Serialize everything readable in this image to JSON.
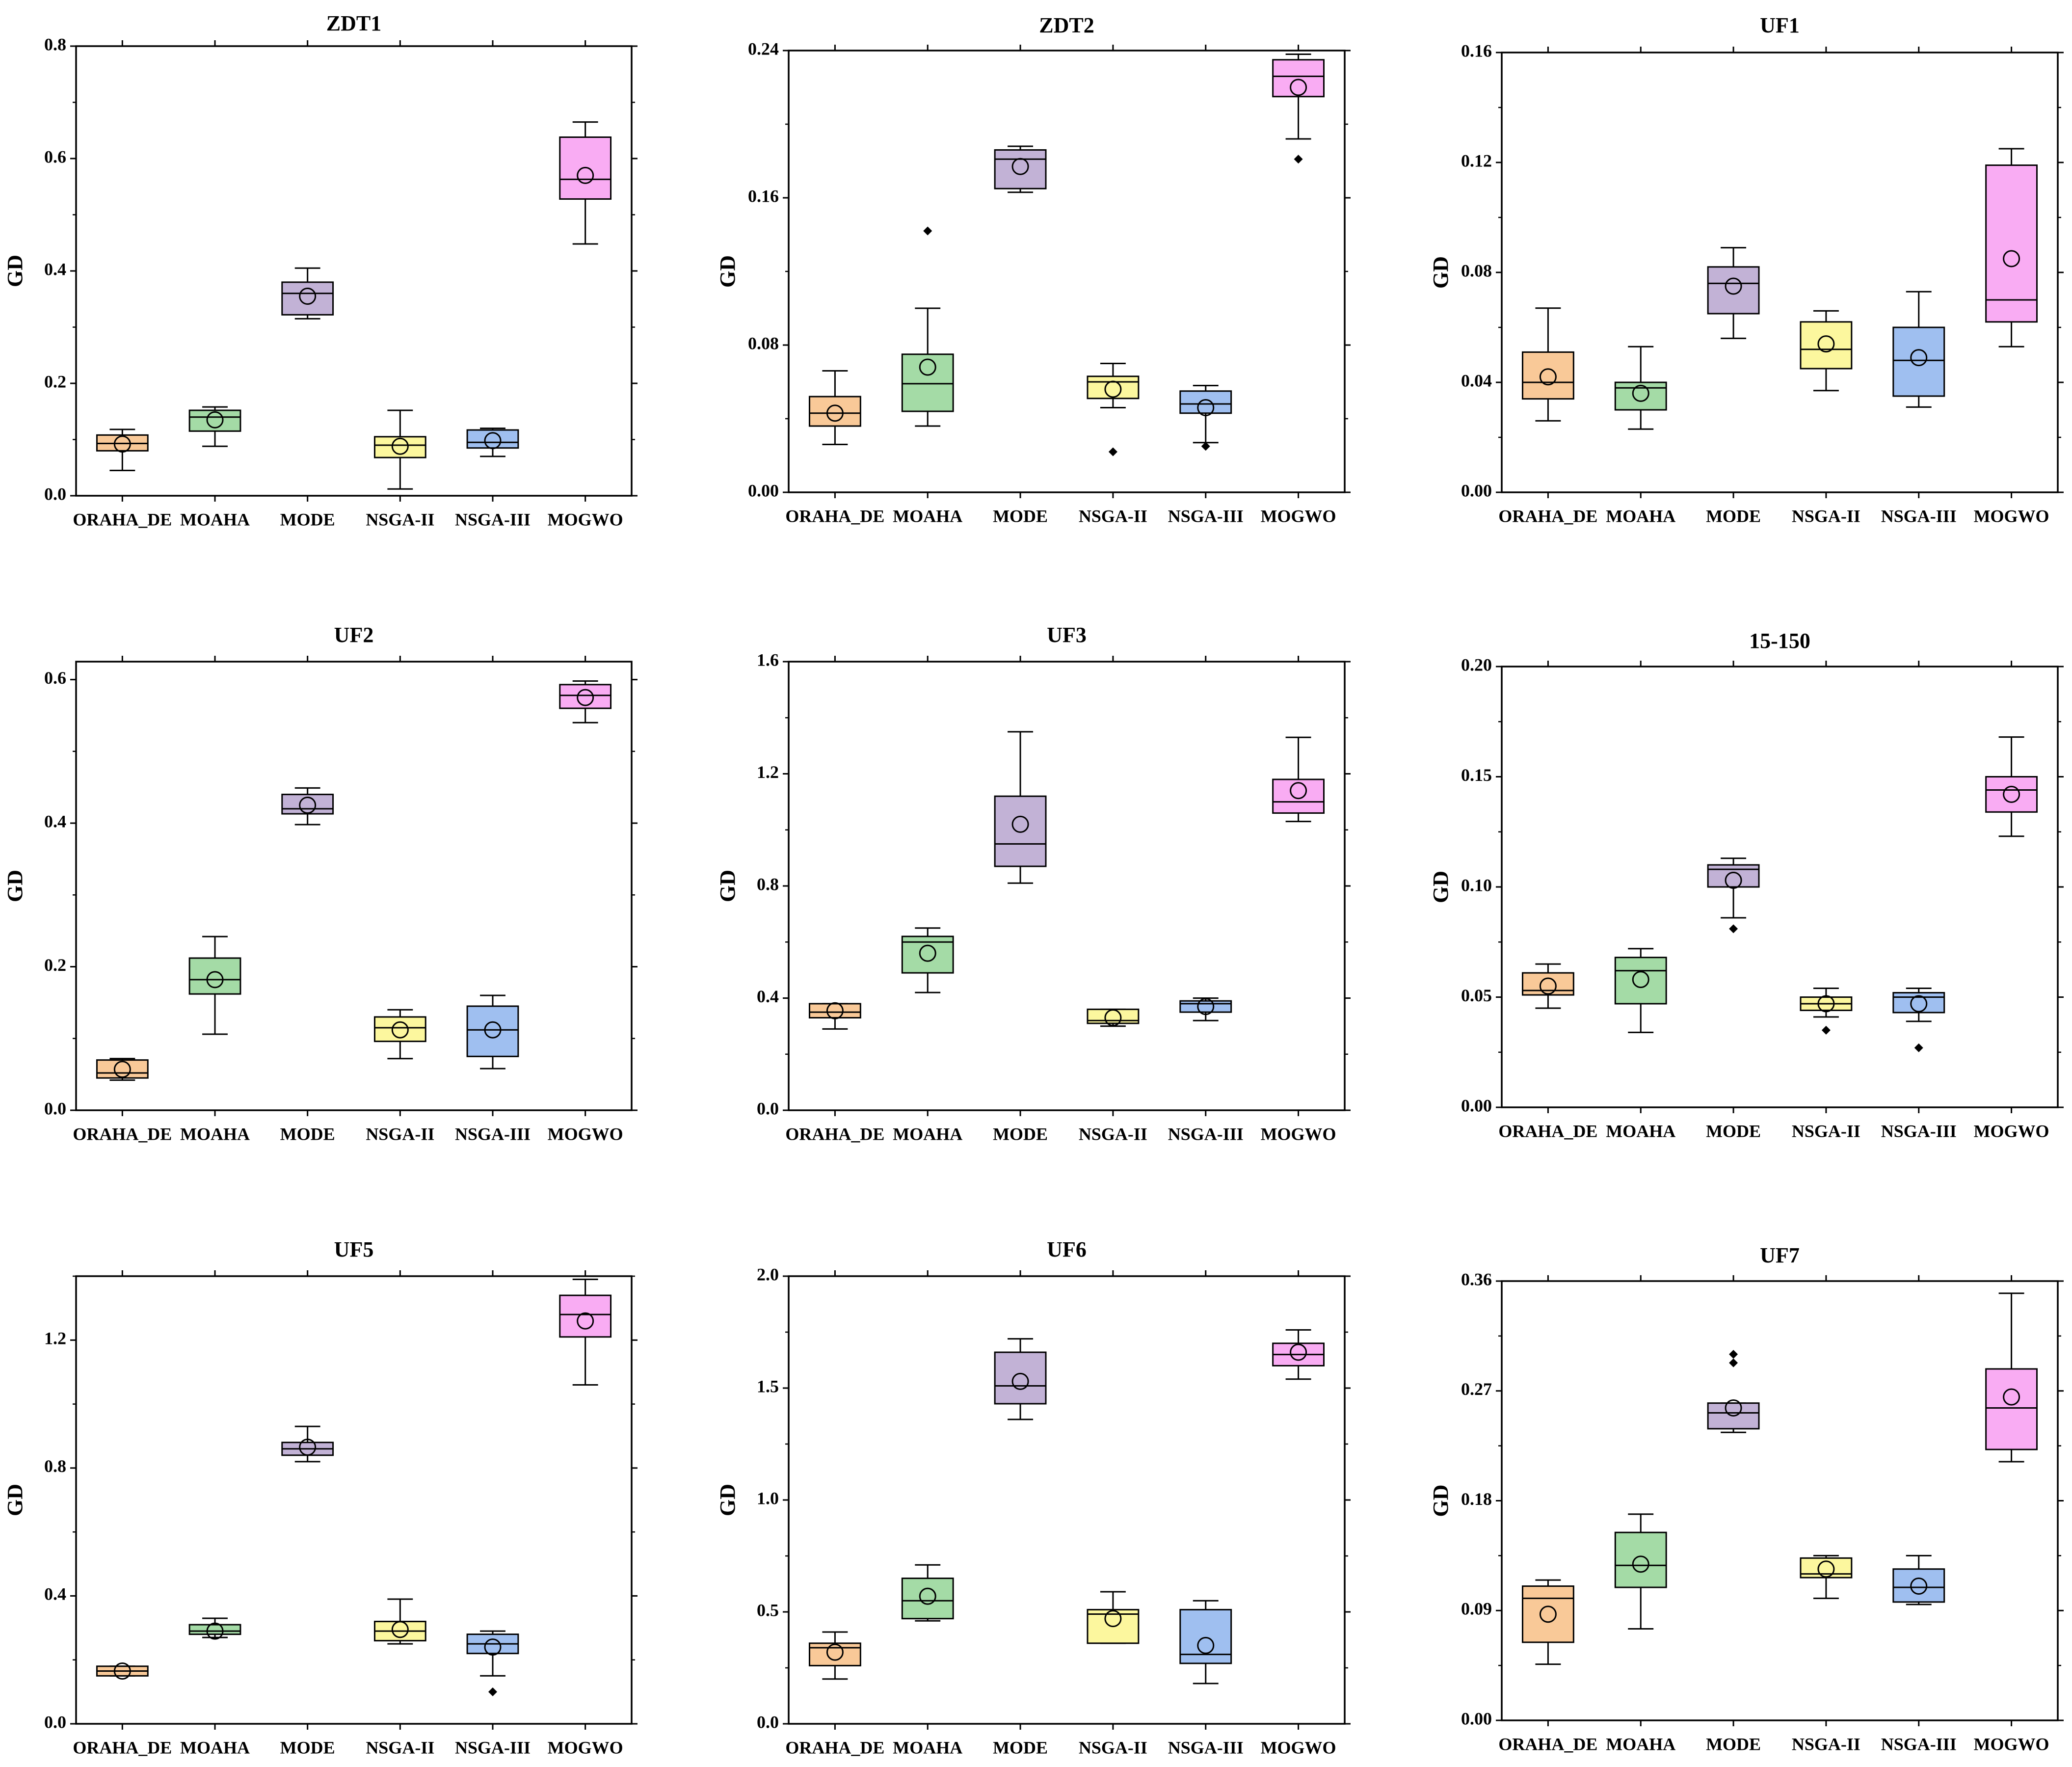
{
  "categories": [
    "ORAHA_DE",
    "MOAHA",
    "MODE",
    "NSGA-II",
    "NSGA-III",
    "MOGWO"
  ],
  "colors": [
    "#F9C998",
    "#A4DBA6",
    "#C2B2D6",
    "#FCF79E",
    "#9FBFF0",
    "#F9ACF3"
  ],
  "chart_data": [
    {
      "type": "box",
      "title": "ZDT1",
      "ylabel": "GD",
      "ylim": [
        0,
        0.8
      ],
      "yticks": [
        0,
        0.2,
        0.4,
        0.6,
        0.8
      ],
      "tick_labels": [
        "0.0",
        "0.2",
        "0.4",
        "0.6",
        "0.8"
      ],
      "boxes": [
        {
          "min": 0.045,
          "q1": 0.08,
          "median": 0.093,
          "q3": 0.108,
          "max": 0.118,
          "mean": 0.092,
          "outliers": []
        },
        {
          "min": 0.088,
          "q1": 0.115,
          "median": 0.14,
          "q3": 0.152,
          "max": 0.158,
          "mean": 0.135,
          "outliers": []
        },
        {
          "min": 0.315,
          "q1": 0.322,
          "median": 0.36,
          "q3": 0.38,
          "max": 0.405,
          "mean": 0.355,
          "outliers": []
        },
        {
          "min": 0.012,
          "q1": 0.068,
          "median": 0.09,
          "q3": 0.105,
          "max": 0.152,
          "mean": 0.088,
          "outliers": []
        },
        {
          "min": 0.07,
          "q1": 0.085,
          "median": 0.095,
          "q3": 0.117,
          "max": 0.12,
          "mean": 0.098,
          "outliers": []
        },
        {
          "min": 0.448,
          "q1": 0.528,
          "median": 0.563,
          "q3": 0.638,
          "max": 0.665,
          "mean": 0.57,
          "outliers": []
        }
      ]
    },
    {
      "type": "box",
      "title": "ZDT2",
      "ylabel": "GD",
      "ylim": [
        0,
        0.24
      ],
      "yticks": [
        0,
        0.08,
        0.16,
        0.24
      ],
      "tick_labels": [
        "0.00",
        "0.08",
        "0.16",
        "0.24"
      ],
      "boxes": [
        {
          "min": 0.026,
          "q1": 0.036,
          "median": 0.043,
          "q3": 0.052,
          "max": 0.066,
          "mean": 0.043,
          "outliers": []
        },
        {
          "min": 0.036,
          "q1": 0.044,
          "median": 0.059,
          "q3": 0.075,
          "max": 0.1,
          "mean": 0.068,
          "outliers": [
            0.142
          ]
        },
        {
          "min": 0.163,
          "q1": 0.165,
          "median": 0.181,
          "q3": 0.186,
          "max": 0.188,
          "mean": 0.177,
          "outliers": []
        },
        {
          "min": 0.046,
          "q1": 0.051,
          "median": 0.06,
          "q3": 0.063,
          "max": 0.07,
          "mean": 0.056,
          "outliers": [
            0.022
          ]
        },
        {
          "min": 0.027,
          "q1": 0.043,
          "median": 0.048,
          "q3": 0.055,
          "max": 0.058,
          "mean": 0.046,
          "outliers": [
            0.025
          ]
        },
        {
          "min": 0.192,
          "q1": 0.215,
          "median": 0.226,
          "q3": 0.235,
          "max": 0.238,
          "mean": 0.22,
          "outliers": [
            0.181
          ]
        }
      ]
    },
    {
      "type": "box",
      "title": "UF1",
      "ylabel": "GD",
      "ylim": [
        0,
        0.16
      ],
      "yticks": [
        0,
        0.04,
        0.08,
        0.12,
        0.16
      ],
      "tick_labels": [
        "0.00",
        "0.04",
        "0.08",
        "0.12",
        "0.16"
      ],
      "boxes": [
        {
          "min": 0.026,
          "q1": 0.034,
          "median": 0.04,
          "q3": 0.051,
          "max": 0.067,
          "mean": 0.042,
          "outliers": []
        },
        {
          "min": 0.023,
          "q1": 0.03,
          "median": 0.038,
          "q3": 0.04,
          "max": 0.053,
          "mean": 0.036,
          "outliers": []
        },
        {
          "min": 0.056,
          "q1": 0.065,
          "median": 0.076,
          "q3": 0.082,
          "max": 0.089,
          "mean": 0.075,
          "outliers": []
        },
        {
          "min": 0.037,
          "q1": 0.045,
          "median": 0.052,
          "q3": 0.062,
          "max": 0.066,
          "mean": 0.054,
          "outliers": []
        },
        {
          "min": 0.031,
          "q1": 0.035,
          "median": 0.048,
          "q3": 0.06,
          "max": 0.073,
          "mean": 0.049,
          "outliers": []
        },
        {
          "min": 0.053,
          "q1": 0.062,
          "median": 0.07,
          "q3": 0.119,
          "max": 0.125,
          "mean": 0.085,
          "outliers": []
        }
      ]
    },
    {
      "type": "box",
      "title": "UF2",
      "ylabel": "GD",
      "ylim": [
        0,
        0.625
      ],
      "yticks": [
        0,
        0.2,
        0.4,
        0.6
      ],
      "tick_labels": [
        "0.0",
        "0.2",
        "0.4",
        "0.6"
      ],
      "boxes": [
        {
          "min": 0.042,
          "q1": 0.045,
          "median": 0.052,
          "q3": 0.07,
          "max": 0.072,
          "mean": 0.057,
          "outliers": []
        },
        {
          "min": 0.106,
          "q1": 0.162,
          "median": 0.182,
          "q3": 0.212,
          "max": 0.242,
          "mean": 0.182,
          "outliers": []
        },
        {
          "min": 0.398,
          "q1": 0.413,
          "median": 0.42,
          "q3": 0.44,
          "max": 0.449,
          "mean": 0.425,
          "outliers": []
        },
        {
          "min": 0.072,
          "q1": 0.096,
          "median": 0.115,
          "q3": 0.13,
          "max": 0.14,
          "mean": 0.112,
          "outliers": []
        },
        {
          "min": 0.058,
          "q1": 0.075,
          "median": 0.112,
          "q3": 0.145,
          "max": 0.16,
          "mean": 0.112,
          "outliers": []
        },
        {
          "min": 0.54,
          "q1": 0.56,
          "median": 0.578,
          "q3": 0.593,
          "max": 0.598,
          "mean": 0.575,
          "outliers": []
        }
      ]
    },
    {
      "type": "box",
      "title": "UF3",
      "ylabel": "GD",
      "ylim": [
        0,
        1.6
      ],
      "yticks": [
        0,
        0.4,
        0.8,
        1.2,
        1.6
      ],
      "tick_labels": [
        "0.0",
        "0.4",
        "0.8",
        "1.2",
        "1.6"
      ],
      "boxes": [
        {
          "min": 0.29,
          "q1": 0.33,
          "median": 0.35,
          "q3": 0.38,
          "max": 0.38,
          "mean": 0.355,
          "outliers": []
        },
        {
          "min": 0.42,
          "q1": 0.49,
          "median": 0.6,
          "q3": 0.62,
          "max": 0.65,
          "mean": 0.56,
          "outliers": []
        },
        {
          "min": 0.81,
          "q1": 0.87,
          "median": 0.95,
          "q3": 1.12,
          "max": 1.35,
          "mean": 1.02,
          "outliers": []
        },
        {
          "min": 0.3,
          "q1": 0.31,
          "median": 0.32,
          "q3": 0.36,
          "max": 0.36,
          "mean": 0.33,
          "outliers": []
        },
        {
          "min": 0.32,
          "q1": 0.35,
          "median": 0.38,
          "q3": 0.39,
          "max": 0.4,
          "mean": 0.37,
          "outliers": []
        },
        {
          "min": 1.03,
          "q1": 1.06,
          "median": 1.1,
          "q3": 1.18,
          "max": 1.33,
          "mean": 1.14,
          "outliers": []
        }
      ]
    },
    {
      "type": "box",
      "title": "15-150",
      "ylabel": "GD",
      "ylim": [
        0,
        0.2
      ],
      "yticks": [
        0,
        0.05,
        0.1,
        0.15,
        0.2
      ],
      "tick_labels": [
        "0.00",
        "0.05",
        "0.10",
        "0.15",
        "0.20"
      ],
      "boxes": [
        {
          "min": 0.045,
          "q1": 0.051,
          "median": 0.053,
          "q3": 0.061,
          "max": 0.065,
          "mean": 0.055,
          "outliers": []
        },
        {
          "min": 0.034,
          "q1": 0.047,
          "median": 0.062,
          "q3": 0.068,
          "max": 0.072,
          "mean": 0.058,
          "outliers": []
        },
        {
          "min": 0.086,
          "q1": 0.1,
          "median": 0.108,
          "q3": 0.11,
          "max": 0.113,
          "mean": 0.103,
          "outliers": [
            0.081
          ]
        },
        {
          "min": 0.041,
          "q1": 0.044,
          "median": 0.047,
          "q3": 0.05,
          "max": 0.054,
          "mean": 0.047,
          "outliers": [
            0.035
          ]
        },
        {
          "min": 0.039,
          "q1": 0.043,
          "median": 0.05,
          "q3": 0.052,
          "max": 0.054,
          "mean": 0.047,
          "outliers": [
            0.027
          ]
        },
        {
          "min": 0.123,
          "q1": 0.134,
          "median": 0.144,
          "q3": 0.15,
          "max": 0.168,
          "mean": 0.142,
          "outliers": []
        }
      ]
    },
    {
      "type": "box",
      "title": "UF5",
      "ylabel": "GD",
      "ylim": [
        0,
        1.4
      ],
      "yticks": [
        0,
        0.4,
        0.8,
        1.2
      ],
      "tick_labels": [
        "0.0",
        "0.4",
        "0.8",
        "1.2"
      ],
      "boxes": [
        {
          "min": 0.15,
          "q1": 0.15,
          "median": 0.165,
          "q3": 0.18,
          "max": 0.18,
          "mean": 0.165,
          "outliers": []
        },
        {
          "min": 0.27,
          "q1": 0.28,
          "median": 0.29,
          "q3": 0.31,
          "max": 0.33,
          "mean": 0.29,
          "outliers": []
        },
        {
          "min": 0.82,
          "q1": 0.84,
          "median": 0.86,
          "q3": 0.88,
          "max": 0.93,
          "mean": 0.865,
          "outliers": []
        },
        {
          "min": 0.25,
          "q1": 0.26,
          "median": 0.29,
          "q3": 0.32,
          "max": 0.39,
          "mean": 0.295,
          "outliers": []
        },
        {
          "min": 0.15,
          "q1": 0.22,
          "median": 0.25,
          "q3": 0.28,
          "max": 0.29,
          "mean": 0.24,
          "outliers": [
            0.1
          ]
        },
        {
          "min": 1.06,
          "q1": 1.21,
          "median": 1.28,
          "q3": 1.34,
          "max": 1.39,
          "mean": 1.26,
          "outliers": []
        }
      ]
    },
    {
      "type": "box",
      "title": "UF6",
      "ylabel": "GD",
      "ylim": [
        0,
        2.0
      ],
      "yticks": [
        0,
        0.5,
        1.0,
        1.5,
        2.0
      ],
      "tick_labels": [
        "0.0",
        "0.5",
        "1.0",
        "1.5",
        "2.0"
      ],
      "boxes": [
        {
          "min": 0.2,
          "q1": 0.26,
          "median": 0.34,
          "q3": 0.36,
          "max": 0.41,
          "mean": 0.32,
          "outliers": []
        },
        {
          "min": 0.46,
          "q1": 0.47,
          "median": 0.55,
          "q3": 0.65,
          "max": 0.71,
          "mean": 0.57,
          "outliers": []
        },
        {
          "min": 1.36,
          "q1": 1.43,
          "median": 1.51,
          "q3": 1.66,
          "max": 1.72,
          "mean": 1.53,
          "outliers": []
        },
        {
          "min": 0.36,
          "q1": 0.36,
          "median": 0.49,
          "q3": 0.51,
          "max": 0.59,
          "mean": 0.47,
          "outliers": []
        },
        {
          "min": 0.18,
          "q1": 0.27,
          "median": 0.31,
          "q3": 0.51,
          "max": 0.55,
          "mean": 0.35,
          "outliers": []
        },
        {
          "min": 1.54,
          "q1": 1.6,
          "median": 1.65,
          "q3": 1.7,
          "max": 1.76,
          "mean": 1.66,
          "outliers": []
        }
      ]
    },
    {
      "type": "box",
      "title": "UF7",
      "ylabel": "GD",
      "ylim": [
        0,
        0.36
      ],
      "yticks": [
        0,
        0.09,
        0.18,
        0.27,
        0.36
      ],
      "tick_labels": [
        "0.00",
        "0.09",
        "0.18",
        "0.27",
        "0.36"
      ],
      "boxes": [
        {
          "min": 0.046,
          "q1": 0.064,
          "median": 0.1,
          "q3": 0.11,
          "max": 0.115,
          "mean": 0.087,
          "outliers": []
        },
        {
          "min": 0.075,
          "q1": 0.109,
          "median": 0.127,
          "q3": 0.154,
          "max": 0.169,
          "mean": 0.128,
          "outliers": []
        },
        {
          "min": 0.236,
          "q1": 0.239,
          "median": 0.252,
          "q3": 0.26,
          "max": 0.26,
          "mean": 0.256,
          "outliers": [
            0.293,
            0.3
          ]
        },
        {
          "min": 0.1,
          "q1": 0.117,
          "median": 0.12,
          "q3": 0.133,
          "max": 0.135,
          "mean": 0.124,
          "outliers": []
        },
        {
          "min": 0.095,
          "q1": 0.097,
          "median": 0.109,
          "q3": 0.124,
          "max": 0.135,
          "mean": 0.11,
          "outliers": []
        },
        {
          "min": 0.212,
          "q1": 0.222,
          "median": 0.256,
          "q3": 0.288,
          "max": 0.35,
          "mean": 0.265,
          "outliers": []
        }
      ]
    }
  ]
}
